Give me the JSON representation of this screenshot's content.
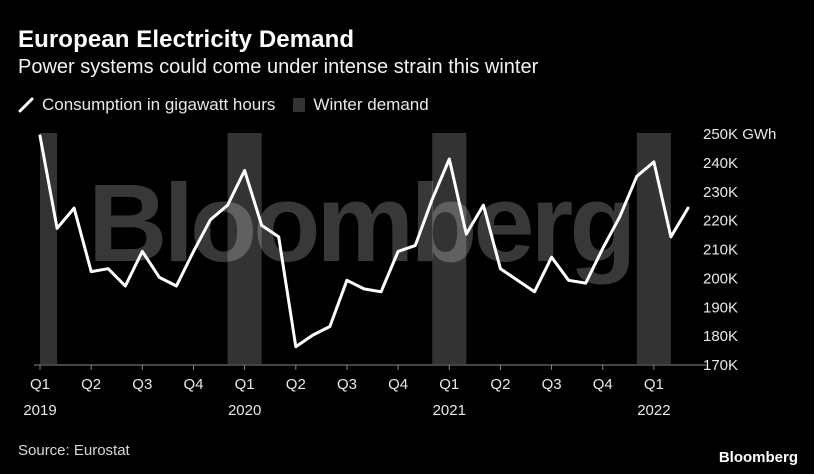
{
  "header": {
    "title": "European Electricity Demand",
    "subtitle": "Power systems could come under intense strain this winter"
  },
  "legend": {
    "line_label": "Consumption in gigawatt hours",
    "band_label": "Winter demand"
  },
  "footer": {
    "source": "Source: Eurostat",
    "brand": "Bloomberg"
  },
  "watermark": "Bloomberg",
  "colors": {
    "background": "#000000",
    "line": "#ffffff",
    "band": "#333333",
    "axis": "#888888"
  },
  "chart_data": {
    "type": "line",
    "title": "European Electricity Demand",
    "subtitle": "Power systems could come under intense strain this winter",
    "x": [
      "2019-01",
      "2019-02",
      "2019-03",
      "2019-04",
      "2019-05",
      "2019-06",
      "2019-07",
      "2019-08",
      "2019-09",
      "2019-10",
      "2019-11",
      "2019-12",
      "2020-01",
      "2020-02",
      "2020-03",
      "2020-04",
      "2020-05",
      "2020-06",
      "2020-07",
      "2020-08",
      "2020-09",
      "2020-10",
      "2020-11",
      "2020-12",
      "2021-01",
      "2021-02",
      "2021-03",
      "2021-04",
      "2021-05",
      "2021-06",
      "2021-07",
      "2021-08",
      "2021-09",
      "2021-10",
      "2021-11",
      "2021-12",
      "2022-01",
      "2022-02",
      "2022-03"
    ],
    "series": [
      {
        "name": "Consumption in gigawatt hours",
        "values": [
          249,
          217,
          224,
          202,
          203,
          197,
          209,
          200,
          197,
          209,
          220,
          225,
          237,
          218,
          214,
          176,
          180,
          183,
          199,
          196,
          195,
          209,
          211,
          227,
          241,
          215,
          225,
          203,
          199,
          195,
          207,
          199,
          198,
          210,
          221,
          235,
          240,
          214,
          224
        ]
      }
    ],
    "shaded_ranges": [
      {
        "label": "Winter demand",
        "start": "2019-01",
        "end": "2019-02"
      },
      {
        "label": "Winter demand",
        "start": "2019-12",
        "end": "2020-02"
      },
      {
        "label": "Winter demand",
        "start": "2020-12",
        "end": "2021-02"
      },
      {
        "label": "Winter demand",
        "start": "2021-12",
        "end": "2022-02"
      }
    ],
    "x_ticks": [
      {
        "at": "2019-01",
        "label": "Q1",
        "year": "2019"
      },
      {
        "at": "2019-04",
        "label": "Q2"
      },
      {
        "at": "2019-07",
        "label": "Q3"
      },
      {
        "at": "2019-10",
        "label": "Q4"
      },
      {
        "at": "2020-01",
        "label": "Q1",
        "year": "2020"
      },
      {
        "at": "2020-04",
        "label": "Q2"
      },
      {
        "at": "2020-07",
        "label": "Q3"
      },
      {
        "at": "2020-10",
        "label": "Q4"
      },
      {
        "at": "2021-01",
        "label": "Q1",
        "year": "2021"
      },
      {
        "at": "2021-04",
        "label": "Q2"
      },
      {
        "at": "2021-07",
        "label": "Q3"
      },
      {
        "at": "2021-10",
        "label": "Q4"
      },
      {
        "at": "2022-01",
        "label": "Q1",
        "year": "2022"
      }
    ],
    "y_ticks": [
      {
        "value": 250,
        "label": "250K GWh"
      },
      {
        "value": 240,
        "label": "240K"
      },
      {
        "value": 230,
        "label": "230K"
      },
      {
        "value": 220,
        "label": "220K"
      },
      {
        "value": 210,
        "label": "210K"
      },
      {
        "value": 200,
        "label": "200K"
      },
      {
        "value": 190,
        "label": "190K"
      },
      {
        "value": 180,
        "label": "180K"
      },
      {
        "value": 170,
        "label": "170K"
      }
    ],
    "ylim": [
      170,
      250
    ],
    "y_axis_side": "right",
    "grid": false,
    "legend_position": "top-left"
  }
}
